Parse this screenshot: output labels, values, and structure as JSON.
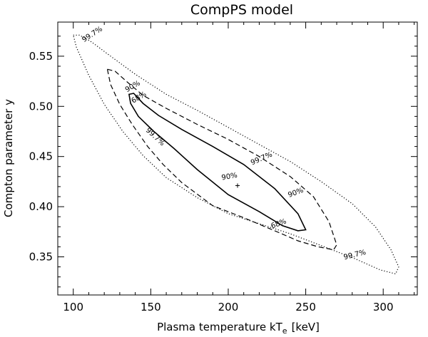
{
  "chart_data": {
    "type": "contour",
    "title": "CompPS model",
    "xlabel": "Plasma temperature kT",
    "xlabel_sub": "e",
    "xlabel_unit": "[keV]",
    "ylabel": "Compton parameter y",
    "xlim": [
      90,
      322
    ],
    "ylim": [
      0.312,
      0.584
    ],
    "xticks": [
      100,
      150,
      200,
      250,
      300
    ],
    "yticks": [
      0.35,
      0.4,
      0.45,
      0.5,
      0.55
    ],
    "ytick_labels": [
      "0.35",
      "0.40",
      "0.45",
      "0.50",
      "0.55"
    ],
    "best_fit": {
      "x": 206,
      "y": 0.421,
      "marker": "+"
    },
    "contours": [
      {
        "level": "99.7%",
        "style": "dotted",
        "points": [
          [
            100,
            0.571
          ],
          [
            104,
            0.571
          ],
          [
            112,
            0.564
          ],
          [
            125,
            0.549
          ],
          [
            140,
            0.532
          ],
          [
            160,
            0.512
          ],
          [
            180,
            0.496
          ],
          [
            200,
            0.479
          ],
          [
            220,
            0.462
          ],
          [
            240,
            0.445
          ],
          [
            260,
            0.425
          ],
          [
            280,
            0.403
          ],
          [
            295,
            0.38
          ],
          [
            305,
            0.357
          ],
          [
            310,
            0.34
          ],
          [
            308,
            0.333
          ],
          [
            298,
            0.337
          ],
          [
            282,
            0.348
          ],
          [
            262,
            0.36
          ],
          [
            240,
            0.373
          ],
          [
            220,
            0.383
          ],
          [
            200,
            0.393
          ],
          [
            180,
            0.409
          ],
          [
            160,
            0.429
          ],
          [
            145,
            0.451
          ],
          [
            132,
            0.475
          ],
          [
            120,
            0.502
          ],
          [
            110,
            0.531
          ],
          [
            102,
            0.559
          ],
          [
            100,
            0.571
          ]
        ],
        "labels": [
          {
            "x": 113,
            "y": 0.57,
            "text": "99.7%",
            "angle": -33
          },
          {
            "x": 222,
            "y": 0.446,
            "text": "99.7%",
            "angle": -24
          },
          {
            "x": 152,
            "y": 0.468,
            "text": "99.7%",
            "angle": 42
          },
          {
            "x": 282,
            "y": 0.35,
            "text": "99.7%",
            "angle": -14
          }
        ]
      },
      {
        "level": "90%",
        "style": "dashed",
        "points": [
          [
            122,
            0.537
          ],
          [
            127,
            0.535
          ],
          [
            135,
            0.524
          ],
          [
            145,
            0.511
          ],
          [
            160,
            0.498
          ],
          [
            180,
            0.482
          ],
          [
            200,
            0.467
          ],
          [
            220,
            0.45
          ],
          [
            240,
            0.43
          ],
          [
            255,
            0.41
          ],
          [
            265,
            0.385
          ],
          [
            270,
            0.362
          ],
          [
            268,
            0.357
          ],
          [
            258,
            0.36
          ],
          [
            245,
            0.366
          ],
          [
            230,
            0.376
          ],
          [
            210,
            0.389
          ],
          [
            190,
            0.401
          ],
          [
            170,
            0.424
          ],
          [
            158,
            0.442
          ],
          [
            148,
            0.46
          ],
          [
            138,
            0.482
          ],
          [
            130,
            0.502
          ],
          [
            124,
            0.522
          ],
          [
            122,
            0.537
          ]
        ],
        "labels": [
          {
            "x": 139,
            "y": 0.518,
            "text": "90%",
            "angle": -30
          },
          {
            "x": 244,
            "y": 0.412,
            "text": "90%",
            "angle": -20
          },
          {
            "x": 201,
            "y": 0.428,
            "text": "90%",
            "angle": -10
          }
        ]
      },
      {
        "level": "68%",
        "style": "solid",
        "points": [
          [
            136,
            0.512
          ],
          [
            139,
            0.513
          ],
          [
            145,
            0.503
          ],
          [
            155,
            0.491
          ],
          [
            170,
            0.477
          ],
          [
            190,
            0.46
          ],
          [
            210,
            0.442
          ],
          [
            230,
            0.418
          ],
          [
            245,
            0.393
          ],
          [
            250,
            0.377
          ],
          [
            245,
            0.376
          ],
          [
            235,
            0.381
          ],
          [
            220,
            0.395
          ],
          [
            200,
            0.412
          ],
          [
            180,
            0.437
          ],
          [
            165,
            0.458
          ],
          [
            152,
            0.475
          ],
          [
            142,
            0.49
          ],
          [
            137,
            0.503
          ],
          [
            136,
            0.512
          ]
        ],
        "labels": [
          {
            "x": 143,
            "y": 0.507,
            "text": "68%",
            "angle": -30
          },
          {
            "x": 233,
            "y": 0.381,
            "text": "68%",
            "angle": -20
          }
        ]
      }
    ]
  }
}
